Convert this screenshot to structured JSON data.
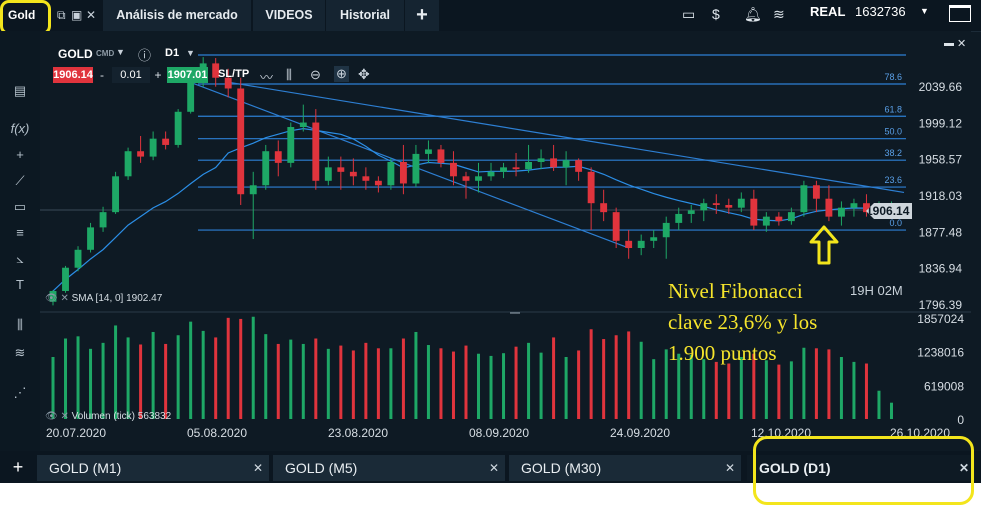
{
  "topbar": {
    "symbol_label": "Gold",
    "tabs": [
      "Análisis de mercado",
      "VIDEOS",
      "Historial"
    ],
    "add_tab": "+",
    "account_type": "REAL",
    "balance": "1632736"
  },
  "chart_header": {
    "symbol": "GOLD",
    "cmd": "CMD",
    "timeframe": "D1",
    "sell_price": "1906.14",
    "lot": "0.01",
    "buy_price": "1907.01",
    "sltp": "SL/TP",
    "minus": "-",
    "plus": "+"
  },
  "indicators": {
    "sma": "SMA [14, 0] 1902.47",
    "volume": "Volumen (tick) 563832"
  },
  "timer": "19H 02M",
  "annotation": {
    "line1": "Nivel Fibonacci",
    "line2": "clave 23,6% y los",
    "line3": "1.900 puntos"
  },
  "colors": {
    "up": "#1ea866",
    "down": "#e0343d",
    "fib": "#2d7fd3",
    "highlight": "#f3e51c",
    "background": "#0e1a24"
  },
  "chart_data": {
    "type": "candlestick",
    "price_axis": [
      "2039.66",
      "1999.12",
      "1958.57",
      "1918.03",
      "1877.48",
      "1836.94",
      "1796.39"
    ],
    "current_price": "1906.14",
    "fib_levels": [
      {
        "label": "78.6",
        "value": 2043
      },
      {
        "label": "61.8",
        "value": 2007
      },
      {
        "label": "50.0",
        "value": 1982
      },
      {
        "label": "38.2",
        "value": 1958
      },
      {
        "label": "23.6",
        "value": 1928
      },
      {
        "label": "0.0",
        "value": 1880
      }
    ],
    "volume_axis": [
      "1857024",
      "1238016",
      "619008",
      "0"
    ],
    "x_labels": [
      "20.07.2020",
      "05.08.2020",
      "23.08.2020",
      "08.09.2020",
      "24.09.2020",
      "12.10.2020",
      "26.10.2020"
    ],
    "candles": [
      {
        "o": 1800,
        "h": 1813,
        "l": 1796,
        "c": 1812,
        "v": 1140000
      },
      {
        "o": 1812,
        "h": 1840,
        "l": 1810,
        "c": 1838,
        "v": 1480000
      },
      {
        "o": 1838,
        "h": 1862,
        "l": 1834,
        "c": 1858,
        "v": 1520000
      },
      {
        "o": 1858,
        "h": 1888,
        "l": 1855,
        "c": 1883,
        "v": 1290000
      },
      {
        "o": 1883,
        "h": 1906,
        "l": 1878,
        "c": 1900,
        "v": 1400000
      },
      {
        "o": 1900,
        "h": 1945,
        "l": 1898,
        "c": 1940,
        "v": 1720000
      },
      {
        "o": 1940,
        "h": 1972,
        "l": 1936,
        "c": 1968,
        "v": 1500000
      },
      {
        "o": 1968,
        "h": 1985,
        "l": 1955,
        "c": 1962,
        "v": 1370000
      },
      {
        "o": 1962,
        "h": 1990,
        "l": 1958,
        "c": 1982,
        "v": 1600000
      },
      {
        "o": 1982,
        "h": 1990,
        "l": 1970,
        "c": 1975,
        "v": 1380000
      },
      {
        "o": 1975,
        "h": 2015,
        "l": 1972,
        "c": 2012,
        "v": 1540000
      },
      {
        "o": 2012,
        "h": 2055,
        "l": 2010,
        "c": 2052,
        "v": 1790000
      },
      {
        "o": 2052,
        "h": 2073,
        "l": 2040,
        "c": 2066,
        "v": 1620000
      },
      {
        "o": 2066,
        "h": 2072,
        "l": 2040,
        "c": 2050,
        "v": 1500000
      },
      {
        "o": 2050,
        "h": 2060,
        "l": 2028,
        "c": 2038,
        "v": 1860000
      },
      {
        "o": 2038,
        "h": 2050,
        "l": 1908,
        "c": 1920,
        "v": 1840000
      },
      {
        "o": 1920,
        "h": 1945,
        "l": 1870,
        "c": 1930,
        "v": 1880000
      },
      {
        "o": 1930,
        "h": 1975,
        "l": 1925,
        "c": 1968,
        "v": 1560000
      },
      {
        "o": 1968,
        "h": 1980,
        "l": 1940,
        "c": 1955,
        "v": 1380000
      },
      {
        "o": 1955,
        "h": 2000,
        "l": 1950,
        "c": 1995,
        "v": 1460000
      },
      {
        "o": 1995,
        "h": 2020,
        "l": 1990,
        "c": 2000,
        "v": 1380000
      },
      {
        "o": 2000,
        "h": 2015,
        "l": 1925,
        "c": 1935,
        "v": 1480000
      },
      {
        "o": 1935,
        "h": 1962,
        "l": 1930,
        "c": 1950,
        "v": 1290000
      },
      {
        "o": 1950,
        "h": 1962,
        "l": 1925,
        "c": 1945,
        "v": 1350000
      },
      {
        "o": 1945,
        "h": 1960,
        "l": 1930,
        "c": 1940,
        "v": 1260000
      },
      {
        "o": 1940,
        "h": 1950,
        "l": 1925,
        "c": 1935,
        "v": 1400000
      },
      {
        "o": 1935,
        "h": 1940,
        "l": 1922,
        "c": 1930,
        "v": 1300000
      },
      {
        "o": 1930,
        "h": 1960,
        "l": 1925,
        "c": 1956,
        "v": 1300000
      },
      {
        "o": 1956,
        "h": 1975,
        "l": 1920,
        "c": 1932,
        "v": 1480000
      },
      {
        "o": 1932,
        "h": 1975,
        "l": 1928,
        "c": 1965,
        "v": 1600000
      },
      {
        "o": 1965,
        "h": 1980,
        "l": 1955,
        "c": 1970,
        "v": 1360000
      },
      {
        "o": 1970,
        "h": 1975,
        "l": 1950,
        "c": 1955,
        "v": 1300000
      },
      {
        "o": 1955,
        "h": 1968,
        "l": 1930,
        "c": 1940,
        "v": 1240000
      },
      {
        "o": 1940,
        "h": 1945,
        "l": 1915,
        "c": 1935,
        "v": 1350000
      },
      {
        "o": 1935,
        "h": 1955,
        "l": 1922,
        "c": 1940,
        "v": 1200000
      },
      {
        "o": 1940,
        "h": 1955,
        "l": 1935,
        "c": 1945,
        "v": 1160000
      },
      {
        "o": 1945,
        "h": 1955,
        "l": 1938,
        "c": 1950,
        "v": 1210000
      },
      {
        "o": 1950,
        "h": 1966,
        "l": 1940,
        "c": 1948,
        "v": 1330000
      },
      {
        "o": 1948,
        "h": 1975,
        "l": 1944,
        "c": 1956,
        "v": 1400000
      },
      {
        "o": 1956,
        "h": 1970,
        "l": 1948,
        "c": 1960,
        "v": 1220000
      },
      {
        "o": 1960,
        "h": 1975,
        "l": 1946,
        "c": 1950,
        "v": 1500000
      },
      {
        "o": 1950,
        "h": 1968,
        "l": 1930,
        "c": 1958,
        "v": 1140000
      },
      {
        "o": 1958,
        "h": 1960,
        "l": 1935,
        "c": 1945,
        "v": 1260000
      },
      {
        "o": 1945,
        "h": 1950,
        "l": 1880,
        "c": 1910,
        "v": 1650000
      },
      {
        "o": 1910,
        "h": 1925,
        "l": 1890,
        "c": 1900,
        "v": 1470000
      },
      {
        "o": 1900,
        "h": 1905,
        "l": 1860,
        "c": 1868,
        "v": 1540000
      },
      {
        "o": 1868,
        "h": 1880,
        "l": 1848,
        "c": 1860,
        "v": 1610000
      },
      {
        "o": 1860,
        "h": 1875,
        "l": 1852,
        "c": 1868,
        "v": 1420000
      },
      {
        "o": 1868,
        "h": 1880,
        "l": 1860,
        "c": 1872,
        "v": 1100000
      },
      {
        "o": 1872,
        "h": 1895,
        "l": 1848,
        "c": 1888,
        "v": 1280000
      },
      {
        "o": 1888,
        "h": 1905,
        "l": 1880,
        "c": 1898,
        "v": 1200000
      },
      {
        "o": 1898,
        "h": 1908,
        "l": 1888,
        "c": 1902,
        "v": 1180000
      },
      {
        "o": 1902,
        "h": 1915,
        "l": 1890,
        "c": 1910,
        "v": 1100000
      },
      {
        "o": 1910,
        "h": 1920,
        "l": 1898,
        "c": 1908,
        "v": 1050000
      },
      {
        "o": 1908,
        "h": 1915,
        "l": 1898,
        "c": 1905,
        "v": 1020000
      },
      {
        "o": 1905,
        "h": 1922,
        "l": 1900,
        "c": 1915,
        "v": 1140000
      },
      {
        "o": 1915,
        "h": 1925,
        "l": 1880,
        "c": 1885,
        "v": 1200000
      },
      {
        "o": 1885,
        "h": 1900,
        "l": 1878,
        "c": 1895,
        "v": 1080000
      },
      {
        "o": 1895,
        "h": 1900,
        "l": 1885,
        "c": 1890,
        "v": 1000000
      },
      {
        "o": 1890,
        "h": 1905,
        "l": 1886,
        "c": 1900,
        "v": 1060000
      },
      {
        "o": 1900,
        "h": 1935,
        "l": 1895,
        "c": 1930,
        "v": 1310000
      },
      {
        "o": 1930,
        "h": 1935,
        "l": 1900,
        "c": 1915,
        "v": 1300000
      },
      {
        "o": 1915,
        "h": 1930,
        "l": 1890,
        "c": 1895,
        "v": 1280000
      },
      {
        "o": 1895,
        "h": 1912,
        "l": 1885,
        "c": 1905,
        "v": 1140000
      },
      {
        "o": 1905,
        "h": 1915,
        "l": 1895,
        "c": 1910,
        "v": 1050000
      },
      {
        "o": 1910,
        "h": 1920,
        "l": 1895,
        "c": 1900,
        "v": 1020000
      },
      {
        "o": 1900,
        "h": 1912,
        "l": 1895,
        "c": 1905,
        "v": 520000
      },
      {
        "o": 1905,
        "h": 1912,
        "l": 1900,
        "c": 1907,
        "v": 300000
      }
    ]
  },
  "bottom_tabs": [
    {
      "label": "GOLD (M1)"
    },
    {
      "label": "GOLD (M5)"
    },
    {
      "label": "GOLD (M30)"
    },
    {
      "label": "GOLD (D1)"
    }
  ],
  "bottom_add": "+",
  "close_glyph": "✕"
}
